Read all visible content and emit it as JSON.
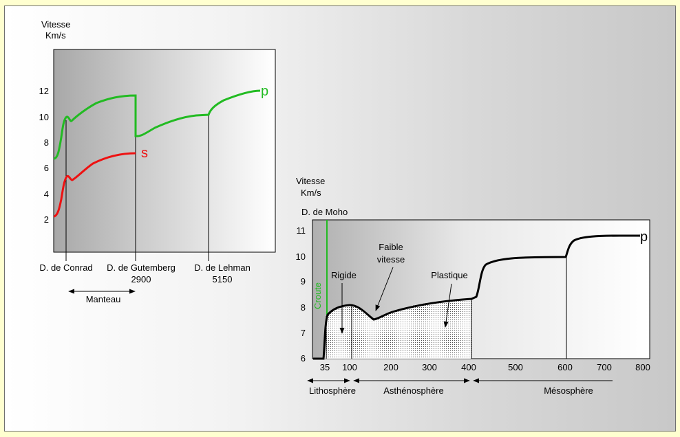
{
  "colors": {
    "p_wave": "#22bb22",
    "s_wave": "#ee1111",
    "black_curve": "#000000",
    "page_bg": "#ffffd0"
  },
  "left_chart": {
    "y_axis_label_1": "Vitesse",
    "y_axis_label_2": "Km/s",
    "y_ticks": [
      "12",
      "10",
      "8",
      "6",
      "4",
      "2"
    ],
    "discontinuities": [
      {
        "name": "D. de Conrad",
        "depth": ""
      },
      {
        "name": "D. de Gutemberg",
        "depth": "2900"
      },
      {
        "name": "D. de Lehman",
        "depth": "5150"
      }
    ],
    "series_p_label": "p",
    "series_s_label": "s",
    "manteau_label": "Manteau"
  },
  "right_chart": {
    "y_axis_label_1": "Vitesse",
    "y_axis_label_2": "Km/s",
    "moho_label": "D. de Moho",
    "croute_label": "Croute",
    "y_ticks": [
      "11",
      "10",
      "9",
      "8",
      "7",
      "6"
    ],
    "x_ticks": [
      "35",
      "100",
      "200",
      "300",
      "400",
      "500",
      "600",
      "700",
      "800"
    ],
    "series_p_label": "p",
    "rigide_label": "Rigide",
    "faible_label_1": "Faible",
    "faible_label_2": "vitesse",
    "plastique_label": "Plastique",
    "layers": [
      "Lithosphère",
      "Asthénosphère",
      "Mésosphère"
    ]
  },
  "chart_data": [
    {
      "type": "line",
      "title": "",
      "ylabel": "Vitesse Km/s",
      "ylim": [
        0,
        14
      ],
      "series": [
        {
          "name": "p",
          "points": [
            [
              0,
              6.7
            ],
            [
              0.05,
              8.0
            ],
            [
              0.09,
              9.8
            ],
            [
              0.13,
              9.5
            ],
            [
              0.3,
              11.0
            ],
            [
              0.46,
              11.6
            ],
            [
              0.46,
              8.5
            ],
            [
              0.6,
              9.6
            ],
            [
              0.8,
              10.2
            ],
            [
              0.86,
              10.8
            ],
            [
              1.0,
              12.0
            ]
          ]
        },
        {
          "name": "s",
          "points": [
            [
              0,
              2.2
            ],
            [
              0.05,
              3.9
            ],
            [
              0.09,
              5.5
            ],
            [
              0.13,
              5.0
            ],
            [
              0.3,
              6.5
            ],
            [
              0.46,
              7.1
            ]
          ]
        }
      ],
      "annotations": [
        "D. de Conrad",
        "D. de Gutemberg 2900",
        "D. de Lehman 5150",
        "Manteau"
      ]
    },
    {
      "type": "line",
      "title": "",
      "ylabel": "Vitesse Km/s",
      "x": [
        35,
        100,
        200,
        300,
        400,
        500,
        600,
        700,
        800
      ],
      "ylim": [
        6,
        11.5
      ],
      "series": [
        {
          "name": "p",
          "points": [
            [
              0,
              6.0
            ],
            [
              30,
              6.0
            ],
            [
              35,
              7.6
            ],
            [
              60,
              8.0
            ],
            [
              100,
              8.1
            ],
            [
              150,
              7.5
            ],
            [
              200,
              7.8
            ],
            [
              300,
              8.1
            ],
            [
              400,
              8.3
            ],
            [
              430,
              9.6
            ],
            [
              500,
              9.9
            ],
            [
              600,
              9.95
            ],
            [
              620,
              10.4
            ],
            [
              700,
              10.75
            ],
            [
              800,
              10.75
            ]
          ]
        }
      ],
      "annotations": [
        "D. de Moho",
        "Croute",
        "Rigide",
        "Faible vitesse",
        "Plastique",
        "Lithosphère",
        "Asthénosphère",
        "Mésosphère"
      ]
    }
  ]
}
